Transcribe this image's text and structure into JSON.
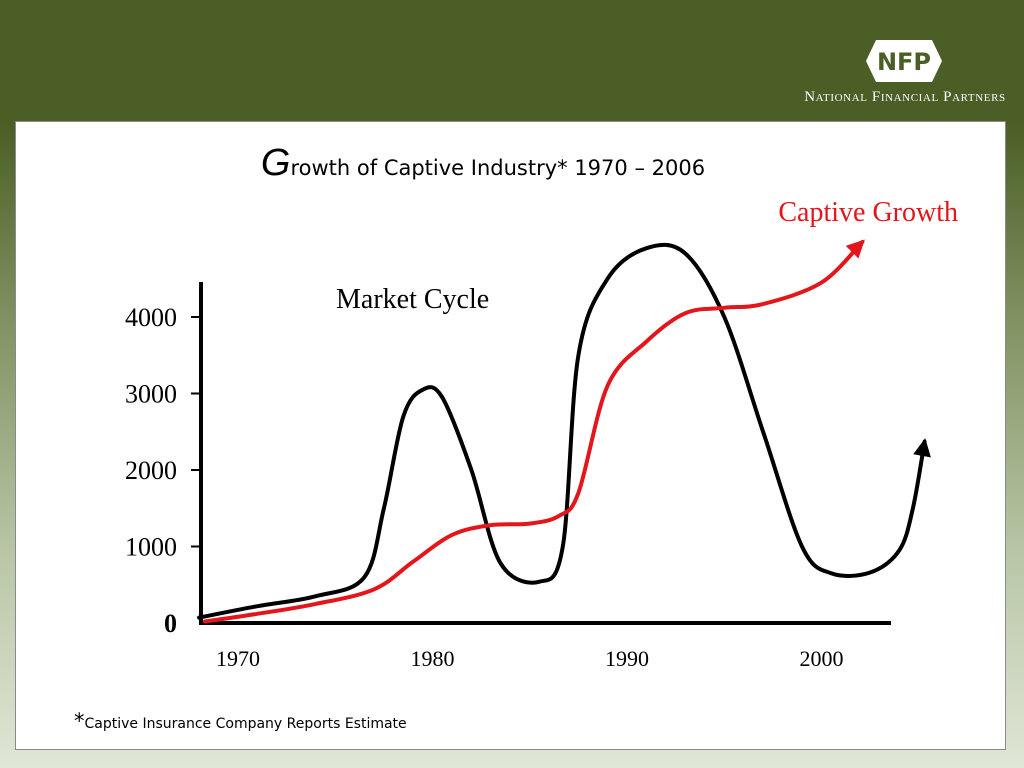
{
  "logo": {
    "mark": "NFP",
    "text": "National Financial Partners",
    "colors": {
      "text": "#ffffff"
    }
  },
  "footnote": {
    "marker": "*",
    "text": "Captive Insurance Company Reports Estimate"
  },
  "chart_data": {
    "type": "line",
    "title": {
      "initial": "G",
      "rest": "rowth of Captive Industry* 1970 – 2006"
    },
    "xlabel": "",
    "ylabel": "",
    "x_ticks": [
      "1970",
      "1980",
      "1990",
      "2000"
    ],
    "y_ticks": [
      "0",
      "1000",
      "2000",
      "3000",
      "4000"
    ],
    "xlim": [
      1968,
      2005
    ],
    "ylim": [
      0,
      4400
    ],
    "grid": false,
    "series": [
      {
        "name": "Captive Growth",
        "color": "#e3161b",
        "arrow": true,
        "points": [
          [
            1968.3,
            20
          ],
          [
            1971,
            120
          ],
          [
            1974,
            250
          ],
          [
            1977,
            440
          ],
          [
            1979,
            800
          ],
          [
            1981,
            1150
          ],
          [
            1983,
            1280
          ],
          [
            1985,
            1300
          ],
          [
            1986.5,
            1400
          ],
          [
            1987.5,
            1700
          ],
          [
            1989,
            3100
          ],
          [
            1991,
            3680
          ],
          [
            1993,
            4050
          ],
          [
            1995,
            4120
          ],
          [
            1997,
            4170
          ],
          [
            2000,
            4450
          ],
          [
            2002.1,
            4980
          ]
        ]
      },
      {
        "name": "Market Cycle",
        "color": "#000000",
        "arrow": true,
        "points": [
          [
            1968,
            70
          ],
          [
            1971,
            220
          ],
          [
            1974,
            350
          ],
          [
            1976.5,
            600
          ],
          [
            1977.5,
            1500
          ],
          [
            1978.5,
            2700
          ],
          [
            1979.5,
            3050
          ],
          [
            1980.5,
            2950
          ],
          [
            1982,
            2000
          ],
          [
            1983.5,
            780
          ],
          [
            1985.5,
            540
          ],
          [
            1986.7,
            1000
          ],
          [
            1987.5,
            3500
          ],
          [
            1989,
            4500
          ],
          [
            1991,
            4900
          ],
          [
            1993,
            4830
          ],
          [
            1995,
            4000
          ],
          [
            1997,
            2500
          ],
          [
            1999,
            1000
          ],
          [
            2000.5,
            650
          ],
          [
            2002.5,
            660
          ],
          [
            2004,
            950
          ],
          [
            2004.7,
            1500
          ],
          [
            2005.3,
            2370
          ]
        ]
      }
    ]
  }
}
